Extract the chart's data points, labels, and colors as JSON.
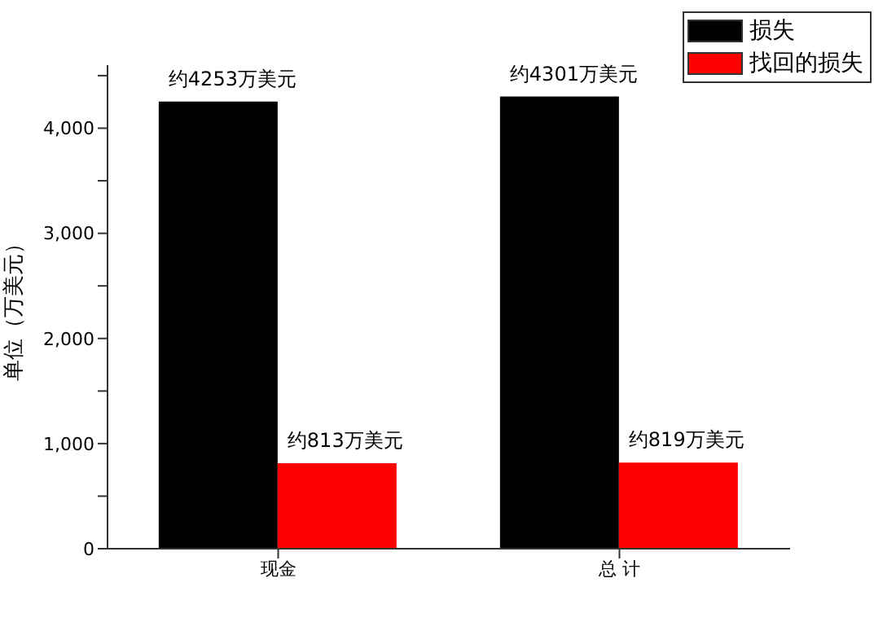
{
  "chart_data": {
    "type": "bar",
    "ylabel": "单位（万美元）",
    "categories": [
      "现金",
      "总 计"
    ],
    "series": [
      {
        "name": "损失",
        "color": "#000000",
        "values": [
          4253,
          4301
        ],
        "value_labels": [
          "约4253万美元",
          "约4301万美元"
        ]
      },
      {
        "name": "找回的损失",
        "color": "#ff0000",
        "values": [
          813,
          819
        ],
        "value_labels": [
          "约813万美元",
          "约819万美元"
        ]
      }
    ],
    "ylim": [
      0,
      4600
    ],
    "yticks": [
      0,
      {
        "value": 500,
        "label": null
      },
      {
        "value": 1000,
        "label": "1,000"
      },
      {
        "value": 1500,
        "label": null
      },
      {
        "value": 2000,
        "label": "2,000"
      },
      {
        "value": 2500,
        "label": null
      },
      {
        "value": 3000,
        "label": "3,000"
      },
      {
        "value": 3500,
        "label": null
      },
      {
        "value": 4000,
        "label": "4,000"
      },
      {
        "value": 4500,
        "label": null
      }
    ],
    "grid": false,
    "legend": "top right"
  }
}
